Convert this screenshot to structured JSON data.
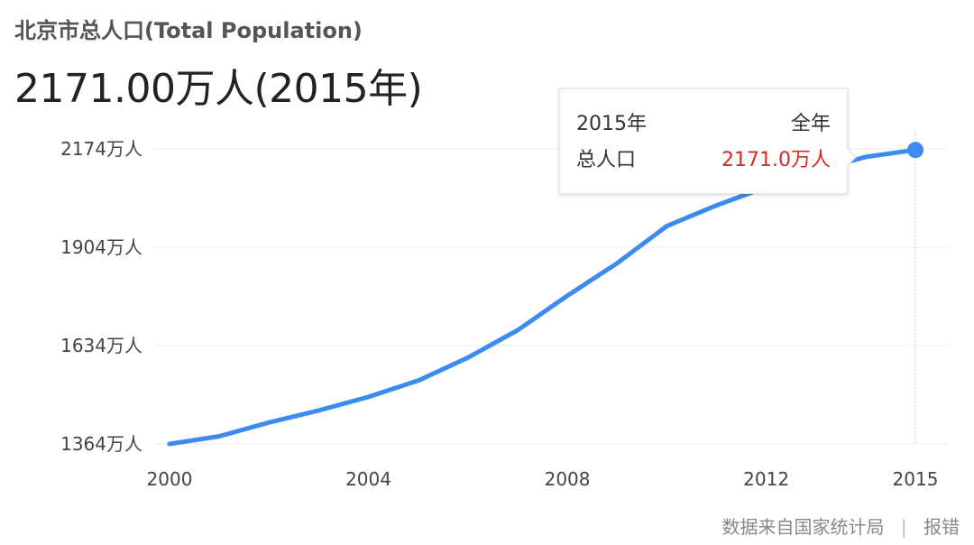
{
  "header": {
    "title": "北京市总人口(Total Population)",
    "value": "2171.00万人(2015年)"
  },
  "chart_data": {
    "type": "line",
    "ylabel_unit": "万人",
    "yticks": [
      1364,
      1634,
      1904,
      2174
    ],
    "ytick_labels": [
      "1364万人",
      "1634万人",
      "1904万人",
      "2174万人"
    ],
    "xticks": [
      2000,
      2004,
      2008,
      2012,
      2015
    ],
    "ylim": [
      1364,
      2174
    ],
    "xlim": [
      2000,
      2015
    ],
    "grid": true,
    "series": [
      {
        "color": "#3c8bf0",
        "points": [
          {
            "x": 2000,
            "y": 1364
          },
          {
            "x": 2001,
            "y": 1385
          },
          {
            "x": 2002,
            "y": 1423
          },
          {
            "x": 2003,
            "y": 1456
          },
          {
            "x": 2004,
            "y": 1493
          },
          {
            "x": 2005,
            "y": 1538
          },
          {
            "x": 2006,
            "y": 1601
          },
          {
            "x": 2007,
            "y": 1676
          },
          {
            "x": 2008,
            "y": 1771
          },
          {
            "x": 2009,
            "y": 1860
          },
          {
            "x": 2010,
            "y": 1962
          },
          {
            "x": 2011,
            "y": 2019
          },
          {
            "x": 2012,
            "y": 2069
          },
          {
            "x": 2013,
            "y": 2115
          },
          {
            "x": 2014,
            "y": 2152
          },
          {
            "x": 2015,
            "y": 2171
          }
        ]
      }
    ],
    "highlight": {
      "x": 2015,
      "y": 2171
    }
  },
  "tooltip": {
    "year": "2015年",
    "period": "全年",
    "metric": "总人口",
    "value": "2171.0万人"
  },
  "footer": {
    "source": "数据来自国家统计局",
    "separator": "|",
    "report": "报错"
  }
}
